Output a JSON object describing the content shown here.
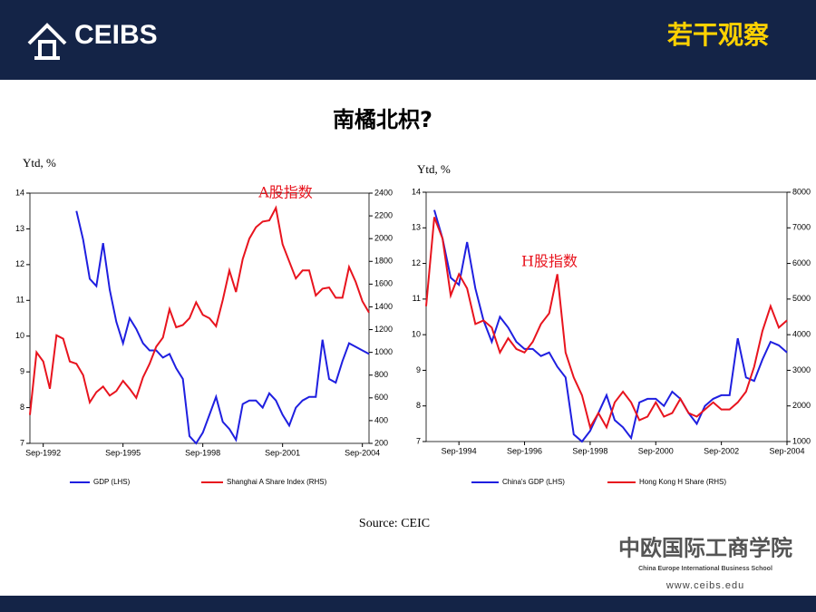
{
  "header": {
    "logo": "CEIBS",
    "section": "若干观察"
  },
  "title": "南橘北枳?",
  "source": "Source: CEIC",
  "footer": {
    "school_cn": "中欧国际工商学院",
    "school_en": "China Europe International Business School",
    "url": "www.ceibs.edu"
  },
  "chart_data": [
    {
      "type": "line",
      "y_label": "Ytd, %",
      "annotation": "A股指数",
      "categories": [
        null,
        null,
        "Sep-1992",
        null,
        null,
        null,
        null,
        null,
        null,
        null,
        null,
        null,
        null,
        null,
        "Sep-1995",
        null,
        null,
        null,
        null,
        null,
        null,
        null,
        null,
        null,
        null,
        null,
        "Sep-1998",
        null,
        null,
        null,
        null,
        null,
        null,
        null,
        null,
        null,
        null,
        null,
        "Sep-2001",
        null,
        null,
        null,
        null,
        null,
        null,
        null,
        null,
        null,
        null,
        null,
        "Sep-2004",
        null
      ],
      "ylim": [
        7,
        14
      ],
      "yticks": [
        7,
        8,
        9,
        10,
        11,
        12,
        13,
        14
      ],
      "y2lim": [
        200,
        2400
      ],
      "y2ticks": [
        200,
        400,
        600,
        800,
        1000,
        1200,
        1400,
        1600,
        1800,
        2000,
        2200,
        2400
      ],
      "series": [
        {
          "name": "GDP (LHS)",
          "color": "#1f1fe0",
          "values": [
            null,
            null,
            null,
            null,
            null,
            null,
            null,
            13.5,
            12.7,
            11.6,
            11.4,
            12.6,
            11.3,
            10.4,
            9.8,
            10.5,
            10.2,
            9.8,
            9.6,
            9.6,
            9.4,
            9.5,
            9.1,
            8.8,
            7.2,
            7.0,
            7.3,
            7.8,
            8.3,
            7.6,
            7.4,
            7.1,
            8.1,
            8.2,
            8.2,
            8.0,
            8.4,
            8.2,
            7.8,
            7.5,
            8.0,
            8.2,
            8.3,
            8.3,
            9.9,
            8.8,
            8.7,
            9.3,
            9.8,
            9.7,
            9.6,
            9.5
          ]
        },
        {
          "name": "Shanghai A Share Index (RHS)",
          "color": "#e8141e",
          "axis": "y2",
          "values": [
            450,
            1000,
            920,
            680,
            1150,
            1120,
            920,
            900,
            800,
            560,
            650,
            700,
            620,
            660,
            750,
            680,
            600,
            780,
            900,
            1050,
            1130,
            1380,
            1220,
            1240,
            1300,
            1440,
            1330,
            1300,
            1230,
            1460,
            1720,
            1530,
            1820,
            2000,
            2100,
            2150,
            2160,
            2270,
            1950,
            1800,
            1650,
            1720,
            1720,
            1500,
            1560,
            1570,
            1480,
            1480,
            1750,
            1620,
            1450,
            1350
          ]
        }
      ]
    },
    {
      "type": "line",
      "y_label": "Ytd, %",
      "annotation": "H股指数",
      "categories": [
        null,
        null,
        null,
        null,
        "Sep-1994",
        null,
        null,
        null,
        null,
        null,
        null,
        null,
        "Sep-1996",
        null,
        null,
        null,
        null,
        null,
        null,
        null,
        "Sep-1998",
        null,
        null,
        null,
        null,
        null,
        null,
        null,
        "Sep-2000",
        null,
        null,
        null,
        null,
        null,
        null,
        null,
        "Sep-2002",
        null,
        null,
        null,
        null,
        null,
        null,
        null,
        "Sep-2004"
      ],
      "ylim": [
        7,
        14
      ],
      "yticks": [
        7,
        8,
        9,
        10,
        11,
        12,
        13,
        14
      ],
      "y2lim": [
        1000,
        8000
      ],
      "y2ticks": [
        1000,
        2000,
        3000,
        4000,
        5000,
        6000,
        7000,
        8000
      ],
      "series": [
        {
          "name": "China's GDP (LHS)",
          "color": "#1f1fe0",
          "values": [
            null,
            13.5,
            12.7,
            11.6,
            11.4,
            12.6,
            11.3,
            10.4,
            9.8,
            10.5,
            10.2,
            9.8,
            9.6,
            9.6,
            9.4,
            9.5,
            9.1,
            8.8,
            7.2,
            7.0,
            7.3,
            7.8,
            8.3,
            7.6,
            7.4,
            7.1,
            8.1,
            8.2,
            8.2,
            8.0,
            8.4,
            8.2,
            7.8,
            7.5,
            8.0,
            8.2,
            8.3,
            8.3,
            9.9,
            8.8,
            8.7,
            9.3,
            9.8,
            9.7,
            9.5
          ]
        },
        {
          "name": "Hong Kong H Share (RHS)",
          "color": "#e8141e",
          "axis": "y2",
          "values": [
            4800,
            7300,
            6700,
            5100,
            5700,
            5300,
            4300,
            4400,
            4200,
            3500,
            3900,
            3600,
            3500,
            3800,
            4300,
            4600,
            5700,
            3500,
            2800,
            2300,
            1400,
            1800,
            1400,
            2100,
            2400,
            2100,
            1600,
            1700,
            2100,
            1700,
            1800,
            2200,
            1800,
            1700,
            1900,
            2100,
            1900,
            1900,
            2100,
            2400,
            3100,
            4100,
            4800,
            4200,
            4400
          ]
        }
      ]
    }
  ]
}
